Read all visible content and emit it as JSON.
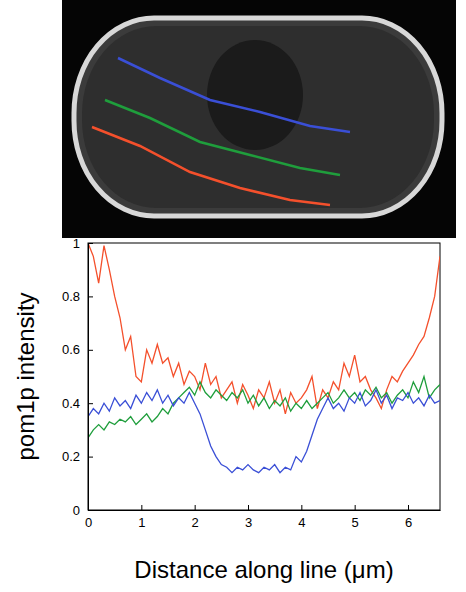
{
  "chart_data": {
    "type": "line",
    "ylabel": "pom1p intensity",
    "xlabel": "Distance along line (μm)",
    "xlim": [
      0,
      6.6
    ],
    "xticks": [
      0,
      1,
      2,
      3,
      4,
      5,
      6
    ],
    "ylim": [
      0,
      1
    ],
    "yticks": [
      0,
      0.2,
      0.4,
      0.6,
      0.8,
      1
    ],
    "x": [
      0,
      0.1,
      0.2,
      0.3,
      0.4,
      0.5,
      0.6,
      0.7,
      0.8,
      0.9,
      1.0,
      1.1,
      1.2,
      1.3,
      1.4,
      1.5,
      1.6,
      1.7,
      1.8,
      1.9,
      2.0,
      2.1,
      2.2,
      2.3,
      2.4,
      2.5,
      2.6,
      2.7,
      2.8,
      2.9,
      3.0,
      3.1,
      3.2,
      3.3,
      3.4,
      3.5,
      3.6,
      3.7,
      3.8,
      3.9,
      4.0,
      4.1,
      4.2,
      4.3,
      4.4,
      4.5,
      4.6,
      4.7,
      4.8,
      4.9,
      5.0,
      5.1,
      5.2,
      5.3,
      5.4,
      5.5,
      5.6,
      5.7,
      5.8,
      5.9,
      6.0,
      6.1,
      6.2,
      6.3,
      6.4,
      6.5,
      6.6
    ],
    "series": [
      {
        "color": "#f4502c",
        "values": [
          1.0,
          0.95,
          0.85,
          0.99,
          0.9,
          0.8,
          0.72,
          0.6,
          0.65,
          0.5,
          0.48,
          0.6,
          0.55,
          0.62,
          0.55,
          0.57,
          0.5,
          0.55,
          0.47,
          0.52,
          0.5,
          0.45,
          0.55,
          0.47,
          0.5,
          0.42,
          0.45,
          0.48,
          0.4,
          0.47,
          0.43,
          0.38,
          0.45,
          0.42,
          0.48,
          0.4,
          0.45,
          0.36,
          0.44,
          0.4,
          0.42,
          0.45,
          0.5,
          0.38,
          0.45,
          0.42,
          0.48,
          0.45,
          0.55,
          0.5,
          0.58,
          0.48,
          0.5,
          0.45,
          0.42,
          0.38,
          0.45,
          0.5,
          0.48,
          0.52,
          0.55,
          0.58,
          0.62,
          0.65,
          0.72,
          0.8,
          0.95
        ]
      },
      {
        "color": "#1f9e3c",
        "values": [
          0.27,
          0.3,
          0.32,
          0.3,
          0.33,
          0.32,
          0.34,
          0.33,
          0.35,
          0.32,
          0.34,
          0.36,
          0.33,
          0.35,
          0.38,
          0.36,
          0.4,
          0.42,
          0.44,
          0.46,
          0.43,
          0.48,
          0.44,
          0.42,
          0.45,
          0.43,
          0.41,
          0.44,
          0.42,
          0.45,
          0.4,
          0.43,
          0.39,
          0.42,
          0.38,
          0.41,
          0.39,
          0.42,
          0.37,
          0.4,
          0.38,
          0.41,
          0.38,
          0.4,
          0.42,
          0.44,
          0.4,
          0.42,
          0.45,
          0.42,
          0.44,
          0.41,
          0.45,
          0.43,
          0.46,
          0.42,
          0.44,
          0.4,
          0.43,
          0.45,
          0.42,
          0.48,
          0.44,
          0.5,
          0.42,
          0.45,
          0.47
        ]
      },
      {
        "color": "#3a4fd6",
        "values": [
          0.35,
          0.38,
          0.36,
          0.4,
          0.37,
          0.42,
          0.39,
          0.41,
          0.38,
          0.43,
          0.4,
          0.44,
          0.41,
          0.45,
          0.4,
          0.43,
          0.39,
          0.42,
          0.4,
          0.44,
          0.4,
          0.36,
          0.3,
          0.24,
          0.2,
          0.17,
          0.16,
          0.14,
          0.16,
          0.15,
          0.17,
          0.15,
          0.14,
          0.16,
          0.15,
          0.17,
          0.14,
          0.16,
          0.15,
          0.2,
          0.18,
          0.22,
          0.28,
          0.34,
          0.38,
          0.42,
          0.38,
          0.4,
          0.37,
          0.42,
          0.4,
          0.44,
          0.39,
          0.41,
          0.45,
          0.4,
          0.43,
          0.38,
          0.42,
          0.41,
          0.44,
          0.4,
          0.42,
          0.39,
          0.43,
          0.4,
          0.41
        ]
      }
    ]
  }
}
